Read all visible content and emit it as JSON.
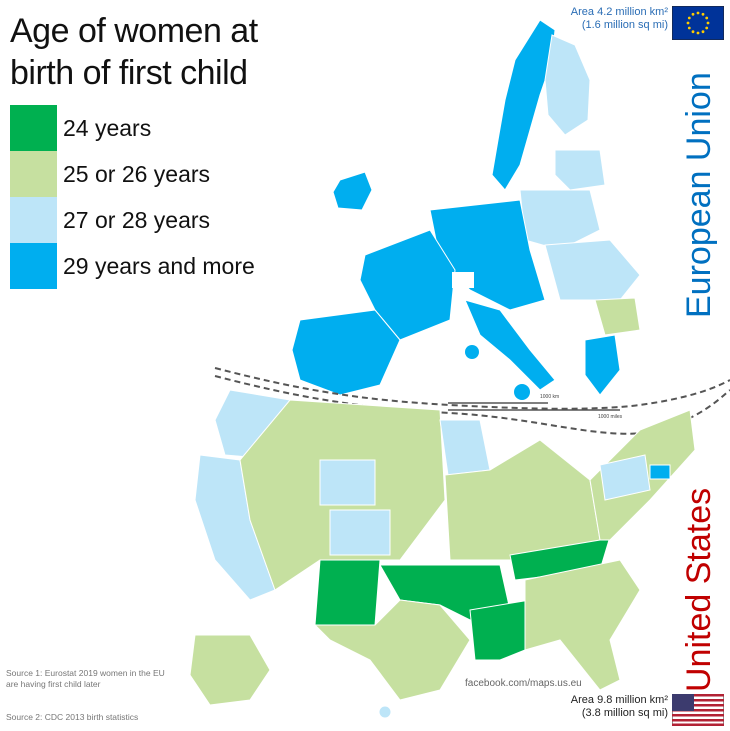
{
  "title_lines": [
    "Age of women at",
    "birth of first child"
  ],
  "legend": [
    {
      "label": "24 years",
      "color": "#00b050"
    },
    {
      "label": "25 or 26 years",
      "color": "#c6e0a0"
    },
    {
      "label": "27 or 28 years",
      "color": "#bde5f8"
    },
    {
      "label": "29 years and more",
      "color": "#00aeef"
    }
  ],
  "eu": {
    "label": "European Union",
    "area_line1": "Area 4.2 million km²",
    "area_line2": "(1.6 million sq mi)",
    "color": "#0070c0"
  },
  "us": {
    "label": "United States",
    "area_line1": "Area 9.8 million km²",
    "area_line2": "(3.8 million sq mi)",
    "color": "#c00000"
  },
  "scale": {
    "km": "1000 km",
    "miles": "1000 miles"
  },
  "credit": "facebook.com/maps.us.eu",
  "sources": {
    "line1": "Source 1: Eurostat 2019 women in the EU",
    "line2": "are having first child later",
    "line3": "Source 2: CDC 2013 birth statistics"
  }
}
